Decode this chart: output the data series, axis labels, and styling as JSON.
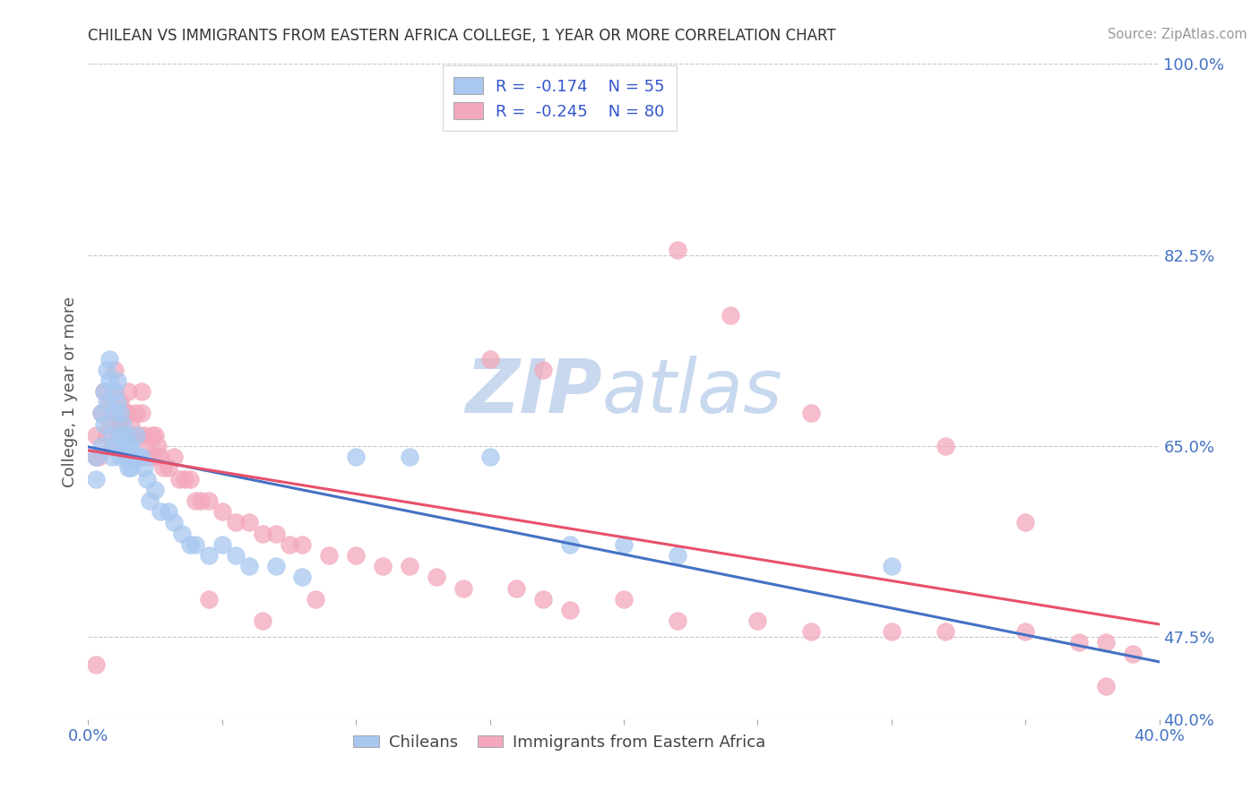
{
  "title": "CHILEAN VS IMMIGRANTS FROM EASTERN AFRICA COLLEGE, 1 YEAR OR MORE CORRELATION CHART",
  "source": "Source: ZipAtlas.com",
  "ylabel": "College, 1 year or more",
  "xlim": [
    0.0,
    0.4
  ],
  "ylim": [
    0.4,
    1.0
  ],
  "xticks": [
    0.0,
    0.05,
    0.1,
    0.15,
    0.2,
    0.25,
    0.3,
    0.35,
    0.4
  ],
  "right_yticks": [
    0.4,
    0.475,
    0.65,
    0.825,
    1.0
  ],
  "right_ytick_labels": [
    "40.0%",
    "47.5%",
    "65.0%",
    "82.5%",
    "100.0%"
  ],
  "legend_R1": "-0.174",
  "legend_N1": "55",
  "legend_R2": "-0.245",
  "legend_N2": "80",
  "color_chilean": "#A8C8F0",
  "color_immigrant": "#F4A8BC",
  "color_line_chilean": "#4472C4",
  "color_line_immigrant": "#E8506A",
  "background_color": "#FFFFFF",
  "grid_color": "#C8C8C8",
  "watermark_color": "#C8D8EE",
  "legend_text_color": "#3355CC",
  "title_color": "#333333",
  "axis_label_color": "#555555",
  "tick_color": "#4472C4",
  "chilean_x": [
    0.003,
    0.003,
    0.005,
    0.005,
    0.006,
    0.006,
    0.007,
    0.007,
    0.008,
    0.008,
    0.009,
    0.009,
    0.01,
    0.01,
    0.01,
    0.011,
    0.011,
    0.012,
    0.012,
    0.012,
    0.013,
    0.013,
    0.014,
    0.014,
    0.015,
    0.015,
    0.016,
    0.016,
    0.017,
    0.018,
    0.019,
    0.02,
    0.021,
    0.022,
    0.023,
    0.025,
    0.027,
    0.03,
    0.032,
    0.035,
    0.038,
    0.04,
    0.045,
    0.05,
    0.055,
    0.06,
    0.07,
    0.08,
    0.1,
    0.12,
    0.15,
    0.18,
    0.2,
    0.22,
    0.3
  ],
  "chilean_y": [
    0.64,
    0.62,
    0.68,
    0.65,
    0.7,
    0.67,
    0.72,
    0.69,
    0.73,
    0.71,
    0.66,
    0.64,
    0.7,
    0.68,
    0.65,
    0.71,
    0.69,
    0.68,
    0.66,
    0.64,
    0.67,
    0.65,
    0.66,
    0.64,
    0.65,
    0.63,
    0.65,
    0.63,
    0.64,
    0.66,
    0.64,
    0.64,
    0.63,
    0.62,
    0.6,
    0.61,
    0.59,
    0.59,
    0.58,
    0.57,
    0.56,
    0.56,
    0.55,
    0.56,
    0.55,
    0.54,
    0.54,
    0.53,
    0.64,
    0.64,
    0.64,
    0.56,
    0.56,
    0.55,
    0.54
  ],
  "immigrant_x": [
    0.003,
    0.004,
    0.005,
    0.006,
    0.007,
    0.008,
    0.008,
    0.009,
    0.01,
    0.01,
    0.01,
    0.011,
    0.012,
    0.012,
    0.013,
    0.014,
    0.015,
    0.015,
    0.016,
    0.017,
    0.018,
    0.019,
    0.02,
    0.02,
    0.021,
    0.022,
    0.023,
    0.024,
    0.025,
    0.025,
    0.026,
    0.027,
    0.028,
    0.03,
    0.032,
    0.034,
    0.036,
    0.038,
    0.04,
    0.042,
    0.045,
    0.05,
    0.055,
    0.06,
    0.065,
    0.07,
    0.075,
    0.08,
    0.09,
    0.1,
    0.11,
    0.12,
    0.13,
    0.14,
    0.16,
    0.17,
    0.18,
    0.2,
    0.22,
    0.25,
    0.27,
    0.3,
    0.32,
    0.35,
    0.37,
    0.38,
    0.39,
    0.15,
    0.17,
    0.22,
    0.24,
    0.27,
    0.32,
    0.35,
    0.38,
    0.003,
    0.003,
    0.045,
    0.065,
    0.085
  ],
  "immigrant_y": [
    0.66,
    0.64,
    0.68,
    0.7,
    0.66,
    0.69,
    0.67,
    0.65,
    0.72,
    0.7,
    0.68,
    0.67,
    0.69,
    0.67,
    0.66,
    0.68,
    0.7,
    0.68,
    0.67,
    0.66,
    0.68,
    0.66,
    0.7,
    0.68,
    0.66,
    0.65,
    0.64,
    0.66,
    0.66,
    0.64,
    0.65,
    0.64,
    0.63,
    0.63,
    0.64,
    0.62,
    0.62,
    0.62,
    0.6,
    0.6,
    0.6,
    0.59,
    0.58,
    0.58,
    0.57,
    0.57,
    0.56,
    0.56,
    0.55,
    0.55,
    0.54,
    0.54,
    0.53,
    0.52,
    0.52,
    0.51,
    0.5,
    0.51,
    0.49,
    0.49,
    0.48,
    0.48,
    0.48,
    0.48,
    0.47,
    0.47,
    0.46,
    0.73,
    0.72,
    0.83,
    0.77,
    0.68,
    0.65,
    0.58,
    0.43,
    0.64,
    0.45,
    0.51,
    0.49,
    0.51
  ]
}
